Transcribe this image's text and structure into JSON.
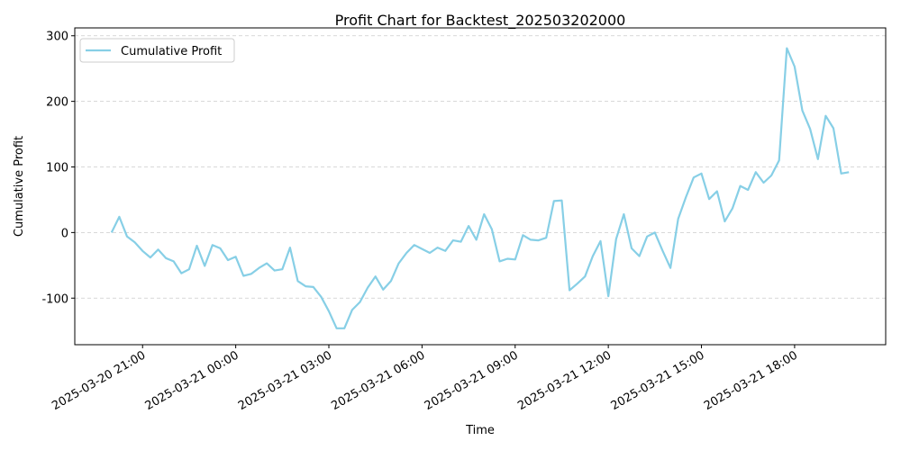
{
  "chart_data": {
    "type": "line",
    "title": "Profit Chart for Backtest_202503202000",
    "x_label": "Time",
    "y_label": "Cumulative Profit",
    "x": [
      "2025-03-20 20:00",
      "2025-03-20 20:15",
      "2025-03-20 20:30",
      "2025-03-20 20:45",
      "2025-03-20 21:00",
      "2025-03-20 21:15",
      "2025-03-20 21:30",
      "2025-03-20 21:45",
      "2025-03-20 22:00",
      "2025-03-20 22:15",
      "2025-03-20 22:30",
      "2025-03-20 22:45",
      "2025-03-20 23:00",
      "2025-03-20 23:15",
      "2025-03-20 23:30",
      "2025-03-20 23:45",
      "2025-03-21 00:00",
      "2025-03-21 00:15",
      "2025-03-21 00:30",
      "2025-03-21 00:45",
      "2025-03-21 01:00",
      "2025-03-21 01:15",
      "2025-03-21 01:30",
      "2025-03-21 01:45",
      "2025-03-21 02:00",
      "2025-03-21 02:15",
      "2025-03-21 02:30",
      "2025-03-21 02:45",
      "2025-03-21 03:00",
      "2025-03-21 03:15",
      "2025-03-21 03:30",
      "2025-03-21 03:45",
      "2025-03-21 04:00",
      "2025-03-21 04:15",
      "2025-03-21 04:30",
      "2025-03-21 04:45",
      "2025-03-21 05:00",
      "2025-03-21 05:15",
      "2025-03-21 05:30",
      "2025-03-21 05:45",
      "2025-03-21 06:00",
      "2025-03-21 06:15",
      "2025-03-21 06:30",
      "2025-03-21 06:45",
      "2025-03-21 07:00",
      "2025-03-21 07:15",
      "2025-03-21 07:30",
      "2025-03-21 07:45",
      "2025-03-21 08:00",
      "2025-03-21 08:15",
      "2025-03-21 08:30",
      "2025-03-21 08:45",
      "2025-03-21 09:00",
      "2025-03-21 09:15",
      "2025-03-21 09:30",
      "2025-03-21 09:45",
      "2025-03-21 10:00",
      "2025-03-21 10:15",
      "2025-03-21 10:30",
      "2025-03-21 10:45",
      "2025-03-21 11:00",
      "2025-03-21 11:15",
      "2025-03-21 11:30",
      "2025-03-21 11:45",
      "2025-03-21 12:00",
      "2025-03-21 12:15",
      "2025-03-21 12:30",
      "2025-03-21 12:45",
      "2025-03-21 13:00",
      "2025-03-21 13:15",
      "2025-03-21 13:30",
      "2025-03-21 13:45",
      "2025-03-21 14:00",
      "2025-03-21 14:15",
      "2025-03-21 14:30",
      "2025-03-21 14:45",
      "2025-03-21 15:00",
      "2025-03-21 15:15",
      "2025-03-21 15:30",
      "2025-03-21 15:45",
      "2025-03-21 16:00",
      "2025-03-21 16:15",
      "2025-03-21 16:30",
      "2025-03-21 16:45",
      "2025-03-21 17:00",
      "2025-03-21 17:15",
      "2025-03-21 17:30",
      "2025-03-21 17:45",
      "2025-03-21 18:00",
      "2025-03-21 18:15",
      "2025-03-21 18:30",
      "2025-03-21 18:45",
      "2025-03-21 19:00",
      "2025-03-21 19:15",
      "2025-03-21 19:30",
      "2025-03-21 19:45"
    ],
    "series": [
      {
        "name": "Cumulative Profit",
        "color": "#87cfe6",
        "values": [
          0,
          24,
          -6,
          -15,
          -28,
          -38,
          -26,
          -39,
          -44,
          -62,
          -56,
          -20,
          -51,
          -19,
          -24,
          -42,
          -37,
          -66,
          -63,
          -54,
          -47,
          -58,
          -56,
          -23,
          -74,
          -82,
          -83,
          -98,
          -120,
          -146,
          -146,
          -118,
          -106,
          -84,
          -67,
          -87,
          -74,
          -47,
          -31,
          -19,
          -25,
          -31,
          -23,
          -28,
          -12,
          -14,
          10,
          -11,
          28,
          5,
          -44,
          -40,
          -41,
          -4,
          -11,
          -12,
          -8,
          48,
          49,
          -88,
          -78,
          -67,
          -36,
          -13,
          -97,
          -10,
          28,
          -24,
          -36,
          -6,
          0,
          -28,
          -54,
          21,
          54,
          84,
          90,
          51,
          63,
          17,
          37,
          71,
          65,
          92,
          76,
          87,
          110,
          281,
          253,
          186,
          158,
          112,
          178,
          159,
          90,
          92
        ]
      }
    ],
    "xlim": [
      "2025-03-20 18:49",
      "2025-03-21 20:56"
    ],
    "xticks": [
      "2025-03-20 21:00",
      "2025-03-21 00:00",
      "2025-03-21 03:00",
      "2025-03-21 06:00",
      "2025-03-21 09:00",
      "2025-03-21 12:00",
      "2025-03-21 15:00",
      "2025-03-21 18:00"
    ],
    "ylim": [
      -171,
      312
    ],
    "yticks": [
      -100,
      0,
      100,
      200,
      300
    ],
    "grid": true,
    "legend": "upper left"
  }
}
